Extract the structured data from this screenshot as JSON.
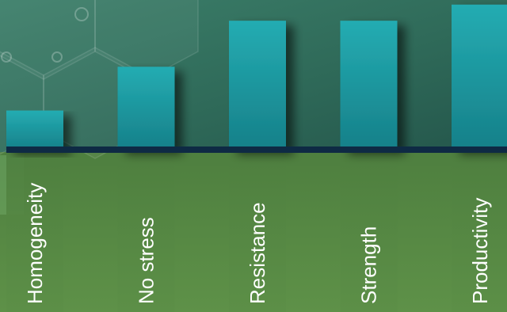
{
  "chart_data": {
    "type": "bar",
    "categories": [
      "Homogeneity",
      "No stress",
      "Resistance",
      "Strength",
      "Productivity"
    ],
    "values": [
      1.7,
      3.6,
      5.6,
      5.6,
      6.3
    ],
    "ylim": [
      0,
      6.5
    ],
    "grid": false,
    "legend": "none"
  },
  "colors": {
    "bar_top": "#22a9b0",
    "bar_bottom": "#17838c",
    "upper_bg": "#2f6a59",
    "lower_bg": "#5a8a43",
    "baseline": "#0e2a44"
  }
}
